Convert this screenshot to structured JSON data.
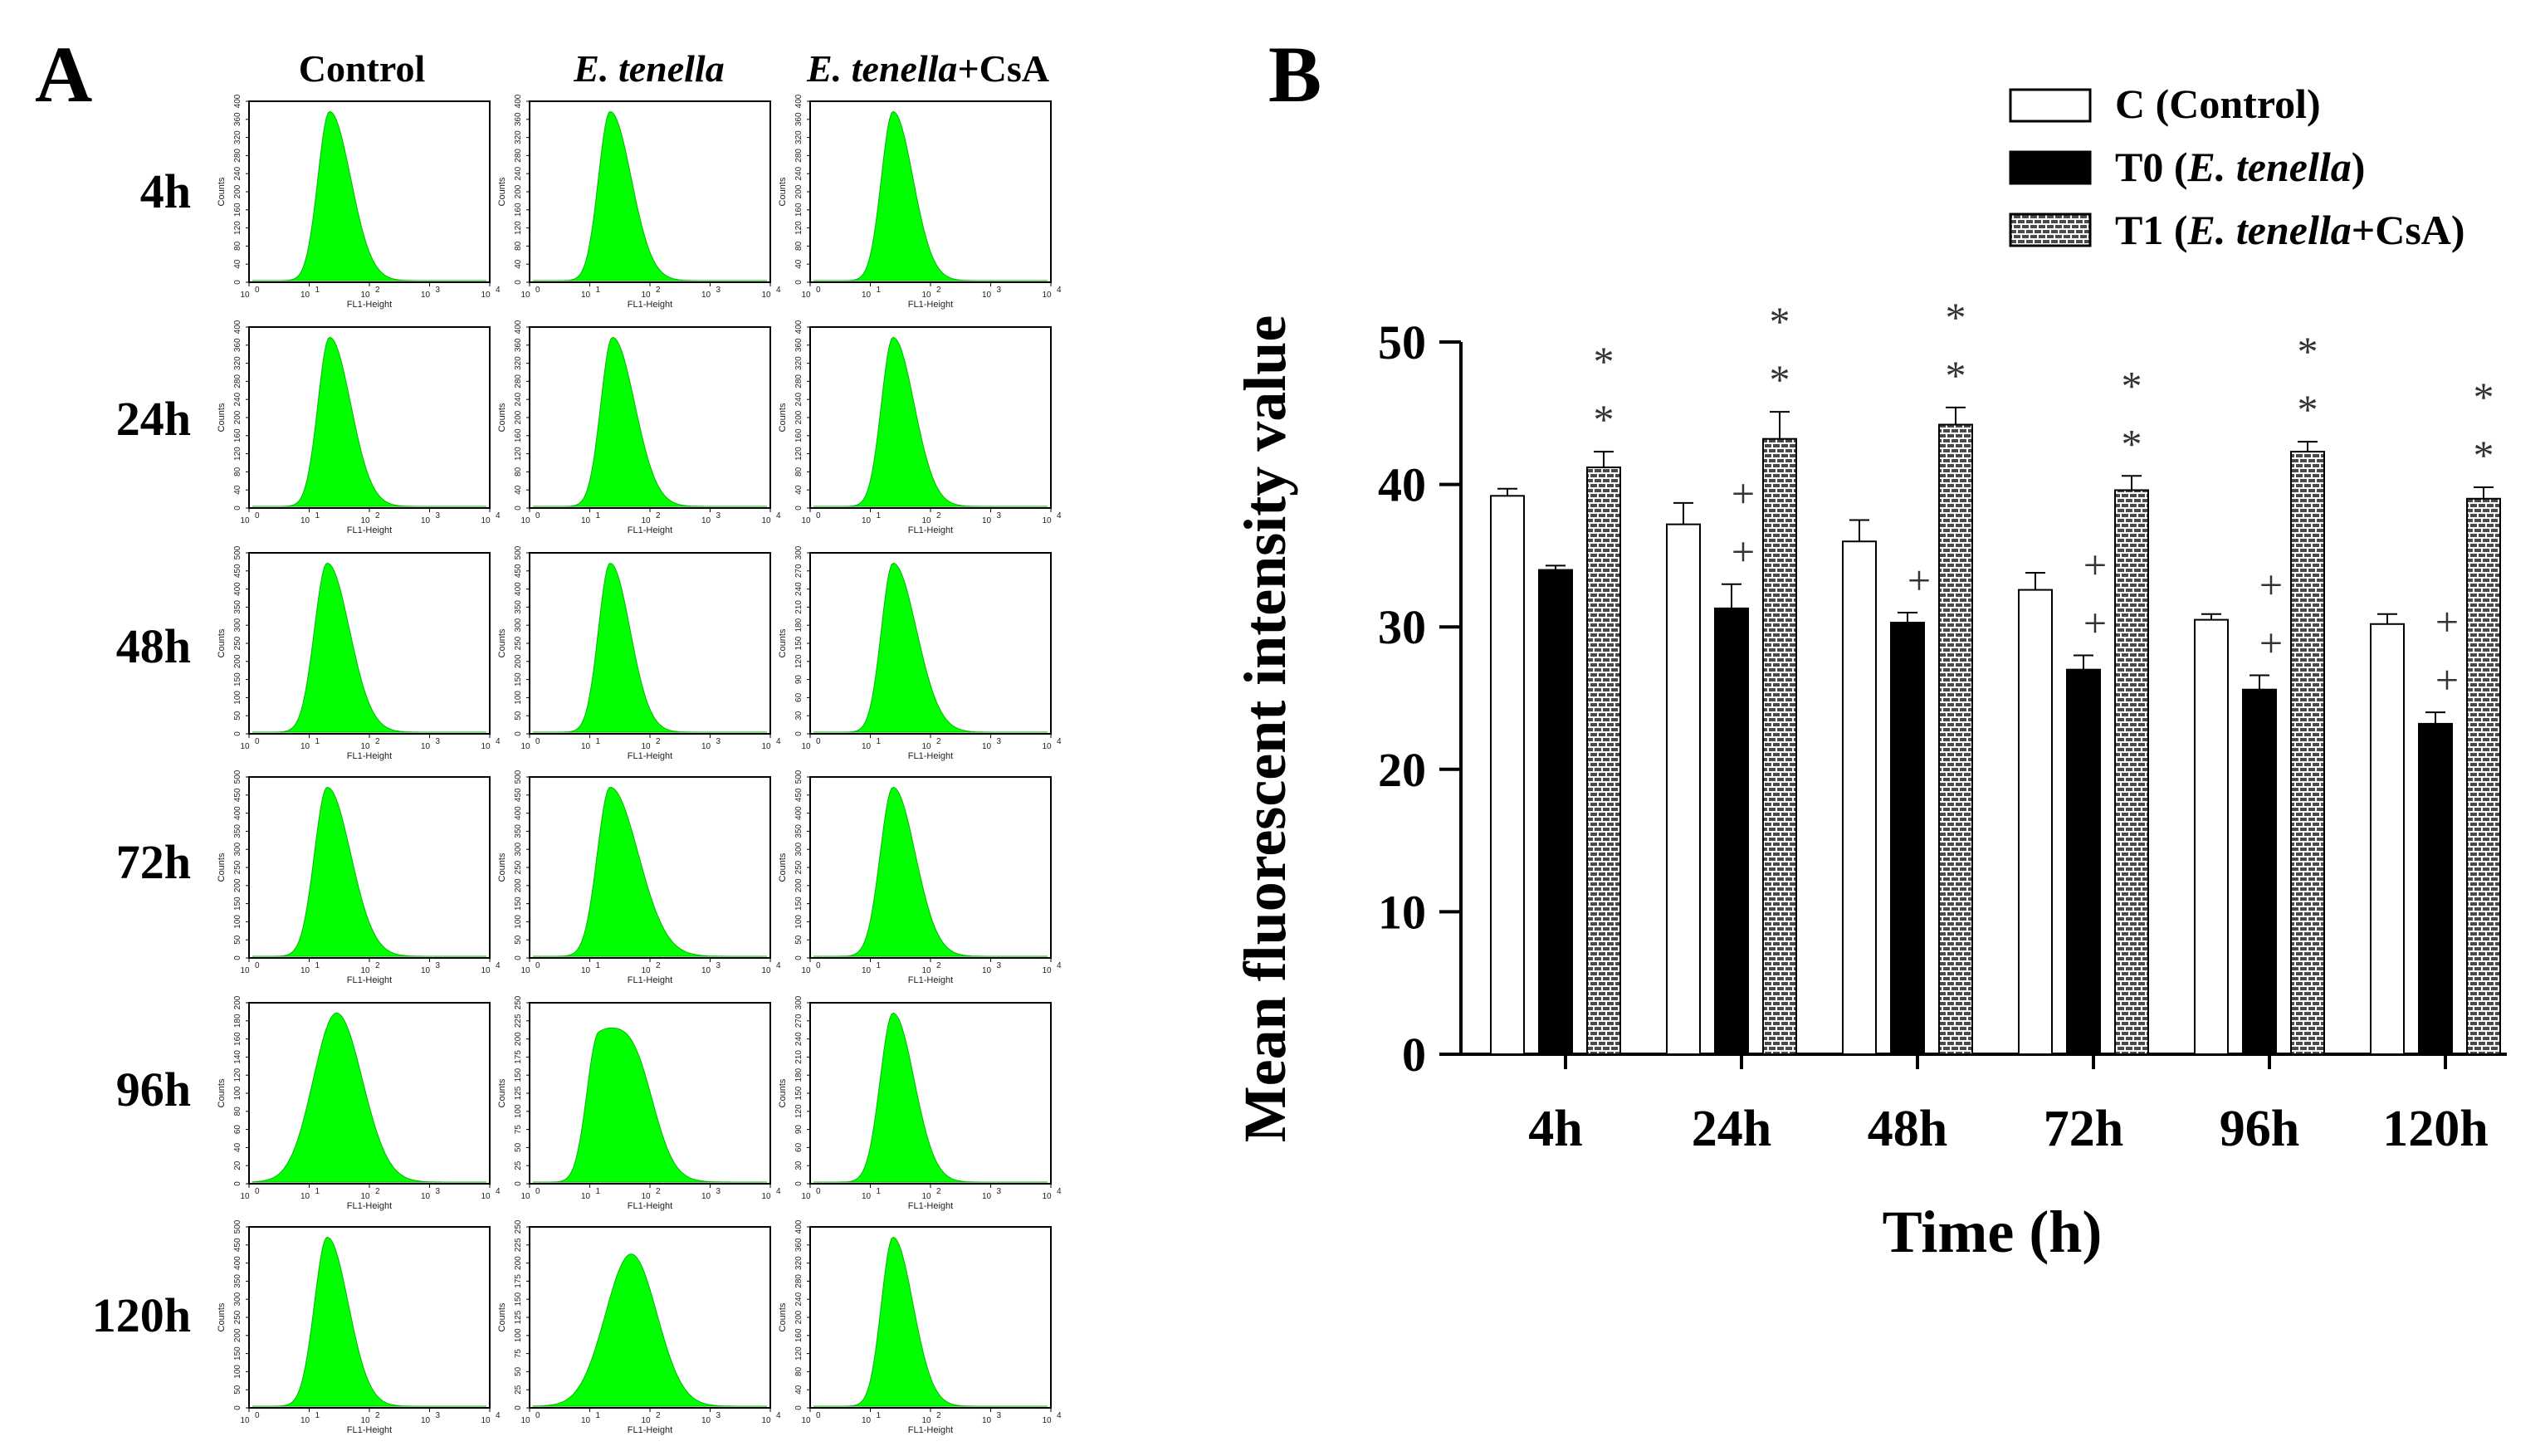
{
  "panel_a": {
    "label": "A",
    "columns": [
      {
        "name": "Control",
        "italic": "",
        "suffix": ""
      },
      {
        "name": "",
        "italic": "E. tenella",
        "suffix": ""
      },
      {
        "name": "",
        "italic": "E. tenella",
        "suffix": "+CsA"
      }
    ],
    "rows": [
      "4h",
      "24h",
      "48h",
      "72h",
      "96h",
      "120h"
    ],
    "x_ticks": [
      "10",
      "10",
      "10",
      "10",
      "10"
    ],
    "x_tick_exponents": [
      "0",
      "1",
      "2",
      "3",
      "4"
    ],
    "x_axis_name": "FL1-Height",
    "y_axis_name": "Counts",
    "histogram_color": "#00ff00",
    "y_tick_labels": [
      [
        [
          "0",
          "40",
          "80",
          "120",
          "160",
          "200",
          "240",
          "280",
          "320",
          "360",
          "400"
        ],
        [
          "0",
          "40",
          "80",
          "120",
          "160",
          "200",
          "240",
          "280",
          "320",
          "360",
          "400"
        ],
        [
          "0",
          "40",
          "80",
          "120",
          "160",
          "200",
          "240",
          "280",
          "320",
          "360",
          "400"
        ]
      ],
      [
        [
          "0",
          "40",
          "80",
          "120",
          "160",
          "200",
          "240",
          "280",
          "320",
          "360",
          "400"
        ],
        [
          "0",
          "40",
          "80",
          "120",
          "160",
          "200",
          "240",
          "280",
          "320",
          "360",
          "400"
        ],
        [
          "0",
          "40",
          "80",
          "120",
          "160",
          "200",
          "240",
          "280",
          "320",
          "360",
          "400"
        ]
      ],
      [
        [
          "0",
          "50",
          "100",
          "150",
          "200",
          "250",
          "300",
          "350",
          "400",
          "450",
          "500"
        ],
        [
          "0",
          "50",
          "100",
          "150",
          "200",
          "250",
          "300",
          "350",
          "400",
          "450",
          "500"
        ],
        [
          "0",
          "30",
          "60",
          "90",
          "120",
          "150",
          "180",
          "210",
          "240",
          "270",
          "300"
        ]
      ],
      [
        [
          "0",
          "50",
          "100",
          "150",
          "200",
          "250",
          "300",
          "350",
          "400",
          "450",
          "500"
        ],
        [
          "0",
          "50",
          "100",
          "150",
          "200",
          "250",
          "300",
          "350",
          "400",
          "450",
          "500"
        ],
        [
          "0",
          "50",
          "100",
          "150",
          "200",
          "250",
          "300",
          "350",
          "400",
          "450",
          "500"
        ]
      ],
      [
        [
          "0",
          "20",
          "40",
          "60",
          "80",
          "100",
          "120",
          "140",
          "160",
          "180",
          "200"
        ],
        [
          "0",
          "25",
          "50",
          "75",
          "100",
          "125",
          "150",
          "175",
          "200",
          "225",
          "250"
        ],
        [
          "0",
          "30",
          "60",
          "90",
          "120",
          "150",
          "180",
          "210",
          "240",
          "270",
          "300"
        ]
      ],
      [
        [
          "0",
          "50",
          "100",
          "150",
          "200",
          "250",
          "300",
          "350",
          "400",
          "450",
          "500"
        ],
        [
          "0",
          "25",
          "50",
          "75",
          "100",
          "125",
          "150",
          "175",
          "200",
          "225",
          "250"
        ],
        [
          "0",
          "40",
          "80",
          "120",
          "160",
          "200",
          "240",
          "280",
          "320",
          "360",
          "400"
        ]
      ]
    ]
  },
  "chart_data": {
    "type": "bar",
    "panel_label": "B",
    "categories": [
      "4h",
      "24h",
      "48h",
      "72h",
      "96h",
      "120h"
    ],
    "series": [
      {
        "name": "C",
        "name_suffix": " (Control)",
        "name_italic": "",
        "name_after": "",
        "fill": "white",
        "values": [
          39.2,
          37.2,
          36.0,
          32.6,
          30.5,
          30.2
        ],
        "errors": [
          0.5,
          1.5,
          1.5,
          1.2,
          0.4,
          0.7
        ]
      },
      {
        "name": "T0",
        "name_suffix": " (",
        "name_italic": "E. tenella",
        "name_after": ")",
        "fill": "black",
        "values": [
          34.0,
          31.3,
          30.3,
          27.0,
          25.6,
          23.2
        ],
        "errors": [
          0.3,
          1.7,
          0.7,
          1.0,
          1.0,
          0.8
        ]
      },
      {
        "name": "T1",
        "name_suffix": " (",
        "name_italic": "E. tenella",
        "name_after": "+CsA)",
        "fill": "brick",
        "values": [
          41.2,
          43.2,
          44.2,
          39.6,
          42.3,
          39.0
        ],
        "errors": [
          1.1,
          1.9,
          1.2,
          1.0,
          0.7,
          0.8
        ]
      }
    ],
    "significance": {
      "T0": [
        "",
        "++",
        "+",
        "++",
        "++",
        "++"
      ],
      "T1": [
        "**",
        "**",
        "**",
        "**",
        "**",
        "**"
      ]
    },
    "ylabel": "Mean fluorescent intensity value",
    "xlabel": "Time (h)",
    "ylim": [
      0,
      50
    ],
    "yticks": [
      0,
      10,
      20,
      30,
      40,
      50
    ]
  }
}
